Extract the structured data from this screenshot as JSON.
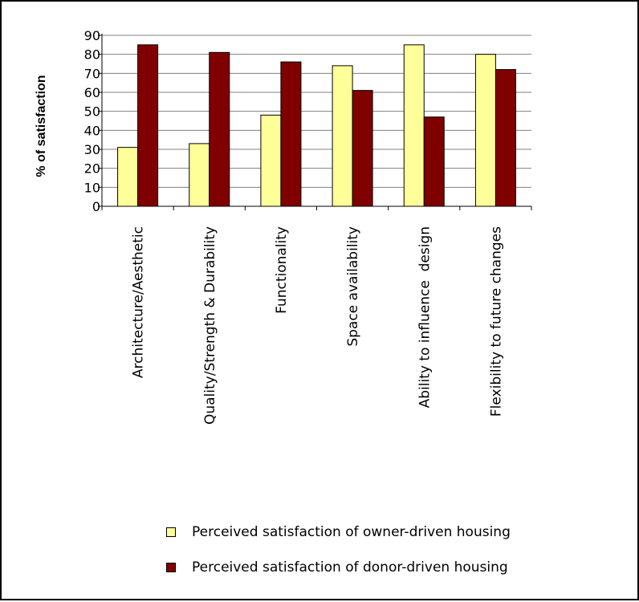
{
  "chart_data": {
    "type": "bar",
    "title": "",
    "xlabel": "",
    "ylabel": "% of satisfaction",
    "ylim": [
      0,
      90
    ],
    "yticks": [
      "0",
      "10",
      "20",
      "30",
      "40",
      "50",
      "60",
      "70",
      "80",
      "90"
    ],
    "grid": true,
    "legend_position": "bottom",
    "categories": [
      "Architecture/Aesthetic",
      "Quality/Strength & Durability",
      "Functionality",
      "Space availability",
      "Ability to influence  design",
      "Flexibility to future changes"
    ],
    "series": [
      {
        "name": "Perceived satisfaction of owner-driven housing",
        "color": "#ffff99",
        "values": [
          31,
          33,
          48,
          74,
          85,
          80
        ]
      },
      {
        "name": "Perceived satisfaction of donor-driven housing",
        "color": "#800000",
        "values": [
          85,
          81,
          76,
          61,
          47,
          72
        ]
      }
    ]
  }
}
